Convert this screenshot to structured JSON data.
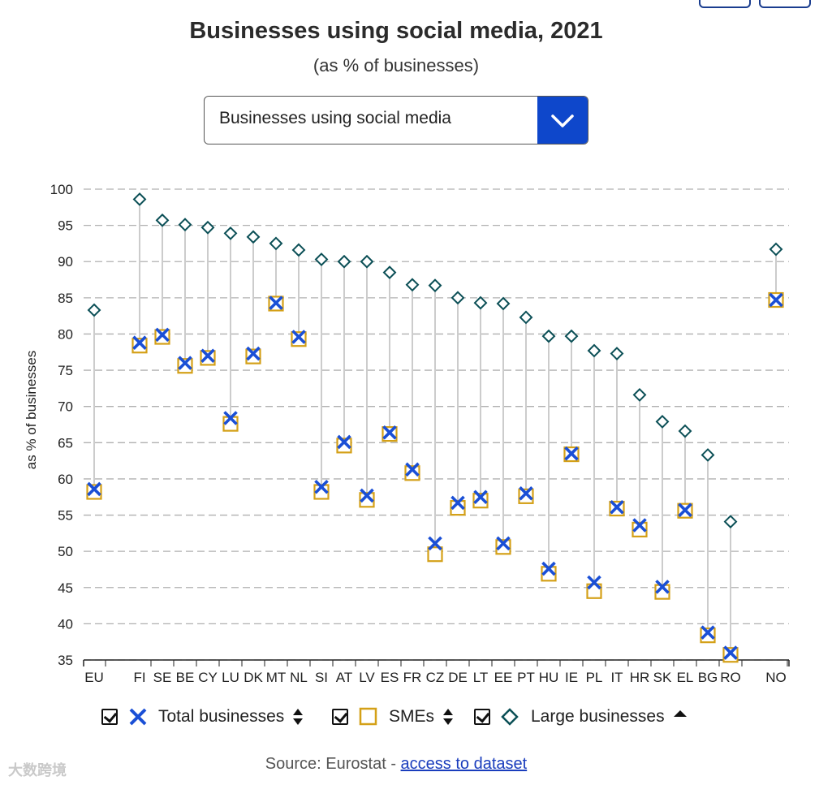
{
  "title": "Businesses using social media, 2021",
  "subtitle": "(as % of businesses)",
  "dropdown": {
    "selected": "Businesses using social media"
  },
  "legend": {
    "total": "Total businesses",
    "smes": "SMEs",
    "large": "Large businesses"
  },
  "source": {
    "prefix": "Source: Eurostat - ",
    "link": "access to dataset"
  },
  "watermark": "大数跨境",
  "colors": {
    "total": "#1a4fd6",
    "smes": "#d4a017",
    "large": "#0b4f56",
    "dropdown": "#0e47cb",
    "grid": "#b0b0b0"
  },
  "chart_data": {
    "type": "scatter",
    "ylabel": "as % of businesses",
    "ylim": [
      35,
      100
    ],
    "yticks": [
      35,
      40,
      45,
      50,
      55,
      60,
      65,
      70,
      75,
      80,
      85,
      90,
      95,
      100
    ],
    "categories": [
      "EU",
      "FI",
      "SE",
      "BE",
      "CY",
      "LU",
      "DK",
      "MT",
      "NL",
      "SI",
      "AT",
      "LV",
      "ES",
      "FR",
      "CZ",
      "DE",
      "LT",
      "EE",
      "PT",
      "HU",
      "IE",
      "PL",
      "IT",
      "HR",
      "SK",
      "EL",
      "BG",
      "RO",
      "NO"
    ],
    "series": [
      {
        "name": "Total businesses",
        "marker": "x",
        "values": [
          58.6,
          78.8,
          79.9,
          76.0,
          77.0,
          68.4,
          77.3,
          84.3,
          79.6,
          58.9,
          65.1,
          57.7,
          66.4,
          61.3,
          51.1,
          56.7,
          57.5,
          51.1,
          58.0,
          47.6,
          63.5,
          45.7,
          56.1,
          53.6,
          45.1,
          55.7,
          38.8,
          36.0,
          84.7
        ]
      },
      {
        "name": "SMEs",
        "marker": "square",
        "values": [
          58.2,
          78.4,
          79.6,
          75.6,
          76.7,
          67.6,
          76.9,
          84.2,
          79.3,
          58.2,
          64.6,
          57.1,
          66.2,
          60.8,
          49.6,
          56.0,
          57.0,
          50.6,
          57.6,
          46.9,
          63.4,
          44.5,
          55.9,
          53.0,
          44.4,
          55.6,
          38.4,
          35.7,
          84.7
        ]
      },
      {
        "name": "Large businesses",
        "marker": "diamond",
        "values": [
          83.3,
          98.6,
          95.7,
          95.1,
          94.7,
          93.9,
          93.4,
          92.5,
          91.6,
          90.3,
          90.0,
          90.0,
          88.5,
          86.8,
          86.7,
          85.0,
          84.3,
          84.2,
          82.3,
          79.7,
          79.7,
          77.7,
          77.3,
          71.6,
          67.9,
          66.6,
          63.3,
          54.1,
          91.7
        ]
      }
    ]
  }
}
